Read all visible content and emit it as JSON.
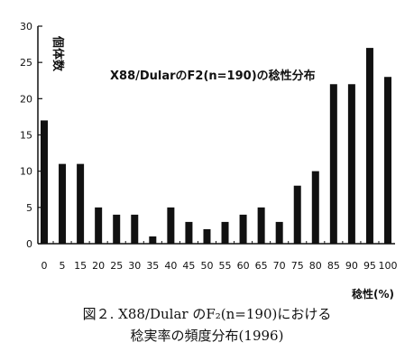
{
  "chart_data": {
    "type": "bar",
    "title": "X88/DularのF2(n=190)の稔性分布",
    "ylabel": "個体数",
    "xlabel": "稔性(%)",
    "ylim": [
      0,
      30
    ],
    "yticks": [
      0,
      5,
      10,
      15,
      20,
      25,
      30
    ],
    "grid": false,
    "categories": [
      "0",
      "5",
      "15",
      "20",
      "25",
      "30",
      "35",
      "40",
      "45",
      "50",
      "55",
      "60",
      "65",
      "70",
      "75",
      "80",
      "85",
      "90",
      "95",
      "100"
    ],
    "values": [
      17,
      11,
      11,
      5,
      4,
      4,
      1,
      5,
      3,
      2,
      3,
      4,
      5,
      3,
      8,
      10,
      22,
      22,
      27,
      23
    ],
    "bar_color": "#111111"
  },
  "caption": {
    "line1": "図２. X88/Dular のF₂(n=190)における",
    "line2": "稔実率の頻度分布(1996)"
  }
}
